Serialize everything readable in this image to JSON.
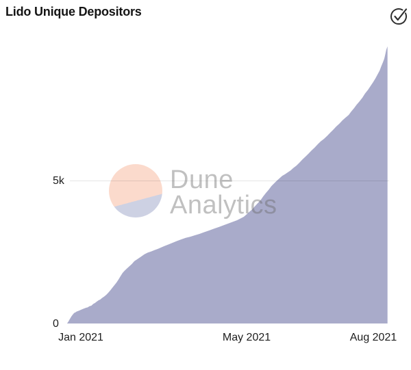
{
  "header": {
    "title": "Lido Unique Depositors",
    "status_icon": "check-circle",
    "status_icon_color": "#2f2f2f"
  },
  "watermark": {
    "line1": "Dune",
    "line2": "Analytics",
    "logo_top_color": "#fbdacc",
    "logo_bottom_color": "#cdd1e3"
  },
  "chart_data": {
    "type": "area",
    "title": "Lido Unique Depositors",
    "xlabel": "",
    "ylabel": "",
    "legend": "none",
    "grid": "horizontal-only",
    "ylim": [
      0,
      10000
    ],
    "xlim_months_from_jan2021": [
      -0.35,
      7.35
    ],
    "x_ticks": [
      {
        "label": "Jan 2021",
        "month_offset": 0
      },
      {
        "label": "May 2021",
        "month_offset": 4
      },
      {
        "label": "Aug 2021",
        "month_offset": 7
      }
    ],
    "y_ticks": [
      {
        "label": "0",
        "value": 0
      },
      {
        "label": "5k",
        "value": 5000
      }
    ],
    "gridline_values": [
      5000
    ],
    "series": [
      {
        "name": "Unique Depositors",
        "fill_color": "#a9abca",
        "points_month_value": [
          [
            -0.33,
            0
          ],
          [
            -0.3,
            60
          ],
          [
            -0.27,
            140
          ],
          [
            -0.23,
            240
          ],
          [
            -0.2,
            300
          ],
          [
            -0.16,
            370
          ],
          [
            -0.13,
            390
          ],
          [
            -0.1,
            420
          ],
          [
            -0.07,
            435
          ],
          [
            -0.03,
            460
          ],
          [
            0,
            480
          ],
          [
            0.05,
            510
          ],
          [
            0.08,
            530
          ],
          [
            0.13,
            555
          ],
          [
            0.16,
            565
          ],
          [
            0.21,
            610
          ],
          [
            0.25,
            625
          ],
          [
            0.3,
            690
          ],
          [
            0.34,
            720
          ],
          [
            0.38,
            770
          ],
          [
            0.43,
            820
          ],
          [
            0.46,
            840
          ],
          [
            0.51,
            900
          ],
          [
            0.56,
            950
          ],
          [
            0.61,
            1010
          ],
          [
            0.66,
            1090
          ],
          [
            0.71,
            1170
          ],
          [
            0.75,
            1250
          ],
          [
            0.8,
            1340
          ],
          [
            0.85,
            1430
          ],
          [
            0.9,
            1540
          ],
          [
            0.95,
            1660
          ],
          [
            1.0,
            1780
          ],
          [
            1.05,
            1860
          ],
          [
            1.1,
            1930
          ],
          [
            1.16,
            2010
          ],
          [
            1.22,
            2090
          ],
          [
            1.28,
            2190
          ],
          [
            1.35,
            2260
          ],
          [
            1.43,
            2340
          ],
          [
            1.52,
            2430
          ],
          [
            1.6,
            2490
          ],
          [
            1.68,
            2530
          ],
          [
            1.76,
            2580
          ],
          [
            1.84,
            2620
          ],
          [
            1.92,
            2670
          ],
          [
            2.0,
            2720
          ],
          [
            2.1,
            2780
          ],
          [
            2.2,
            2840
          ],
          [
            2.3,
            2900
          ],
          [
            2.41,
            2960
          ],
          [
            2.51,
            3010
          ],
          [
            2.62,
            3050
          ],
          [
            2.73,
            3100
          ],
          [
            2.84,
            3150
          ],
          [
            2.95,
            3210
          ],
          [
            3.07,
            3270
          ],
          [
            3.18,
            3330
          ],
          [
            3.3,
            3390
          ],
          [
            3.41,
            3450
          ],
          [
            3.52,
            3510
          ],
          [
            3.63,
            3570
          ],
          [
            3.74,
            3630
          ],
          [
            3.82,
            3690
          ],
          [
            3.9,
            3750
          ],
          [
            3.97,
            3840
          ],
          [
            4.03,
            3920
          ],
          [
            4.1,
            4010
          ],
          [
            4.16,
            4110
          ],
          [
            4.23,
            4220
          ],
          [
            4.3,
            4330
          ],
          [
            4.36,
            4460
          ],
          [
            4.43,
            4590
          ],
          [
            4.5,
            4710
          ],
          [
            4.56,
            4830
          ],
          [
            4.63,
            4930
          ],
          [
            4.69,
            5020
          ],
          [
            4.76,
            5110
          ],
          [
            4.82,
            5190
          ],
          [
            4.89,
            5250
          ],
          [
            4.95,
            5310
          ],
          [
            5.02,
            5380
          ],
          [
            5.08,
            5460
          ],
          [
            5.16,
            5550
          ],
          [
            5.23,
            5650
          ],
          [
            5.3,
            5760
          ],
          [
            5.38,
            5870
          ],
          [
            5.45,
            5970
          ],
          [
            5.52,
            6080
          ],
          [
            5.6,
            6190
          ],
          [
            5.67,
            6300
          ],
          [
            5.74,
            6400
          ],
          [
            5.82,
            6490
          ],
          [
            5.9,
            6600
          ],
          [
            5.97,
            6710
          ],
          [
            6.04,
            6810
          ],
          [
            6.11,
            6920
          ],
          [
            6.19,
            7030
          ],
          [
            6.26,
            7140
          ],
          [
            6.33,
            7230
          ],
          [
            6.41,
            7330
          ],
          [
            6.47,
            7450
          ],
          [
            6.54,
            7570
          ],
          [
            6.6,
            7690
          ],
          [
            6.67,
            7810
          ],
          [
            6.74,
            7940
          ],
          [
            6.8,
            8080
          ],
          [
            6.87,
            8210
          ],
          [
            6.93,
            8340
          ],
          [
            6.99,
            8470
          ],
          [
            7.05,
            8610
          ],
          [
            7.1,
            8750
          ],
          [
            7.15,
            8890
          ],
          [
            7.19,
            9040
          ],
          [
            7.23,
            9180
          ],
          [
            7.26,
            9300
          ],
          [
            7.28,
            9420
          ],
          [
            7.31,
            9620
          ],
          [
            7.34,
            9740
          ]
        ]
      }
    ]
  }
}
